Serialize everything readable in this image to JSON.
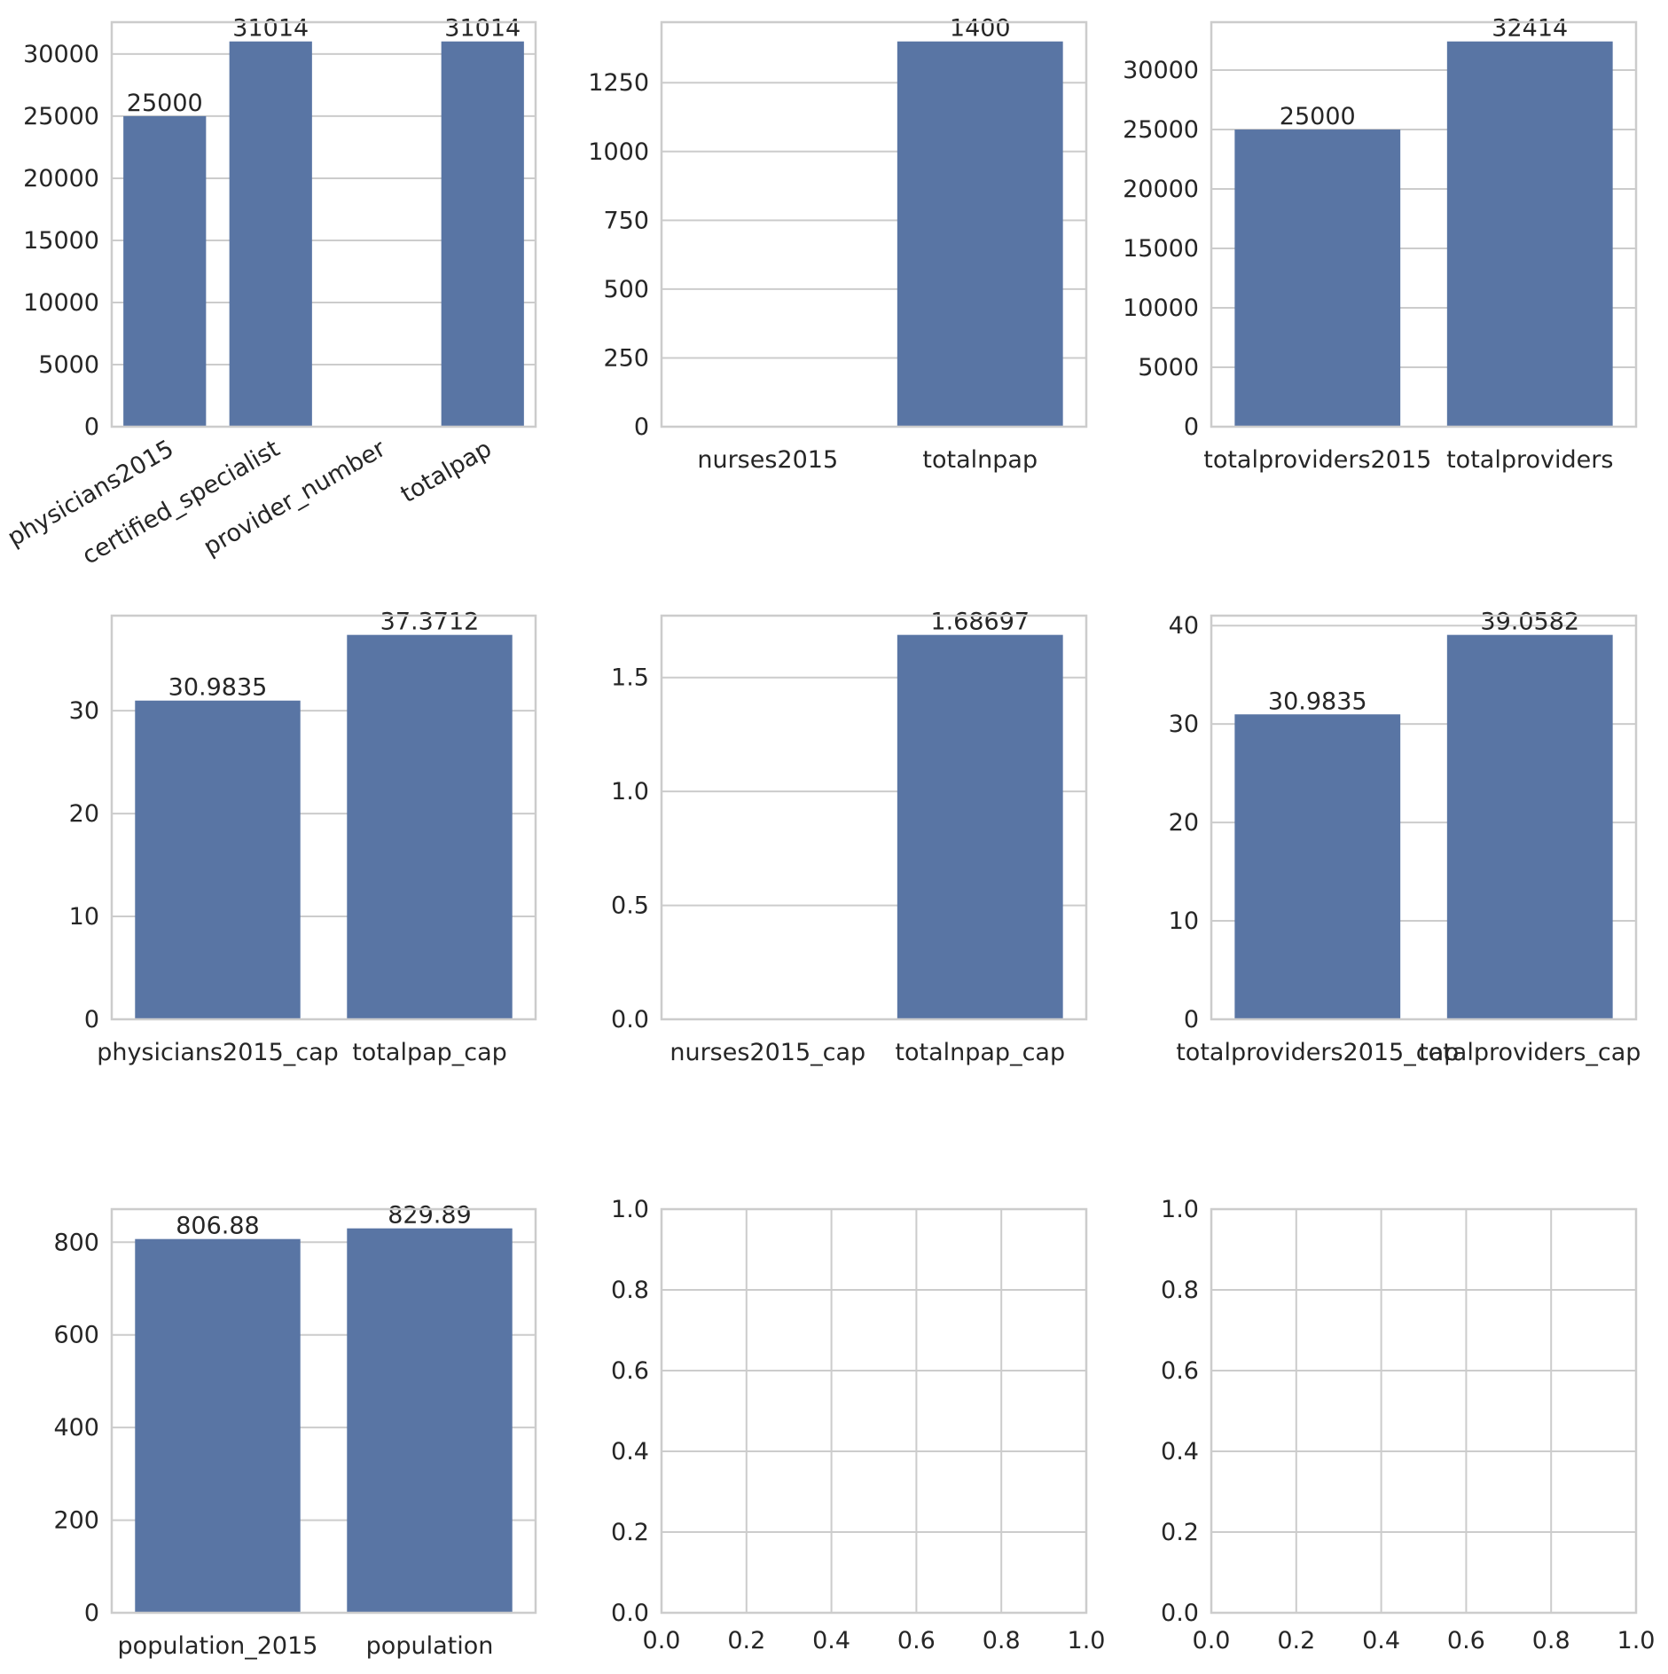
{
  "colors": {
    "bar": "#5975a4",
    "grid": "#cccccc",
    "spine": "#cccccc",
    "text": "#262626",
    "background": "#ffffff"
  },
  "chart_data": [
    {
      "type": "bar",
      "categories": [
        "physicians2015",
        "certified_specialist",
        "provider_number",
        "totalpap"
      ],
      "values": [
        25000,
        31014,
        null,
        31014
      ],
      "data_labels": [
        "25000",
        "31014",
        "",
        "31014"
      ],
      "ylim": [
        0,
        32565
      ],
      "yticks": [
        0,
        5000,
        10000,
        15000,
        20000,
        25000,
        30000
      ],
      "xtick_rotation": -30,
      "grid": "y"
    },
    {
      "type": "bar",
      "categories": [
        "nurses2015",
        "totalnpap"
      ],
      "values": [
        null,
        1400
      ],
      "data_labels": [
        "",
        "1400"
      ],
      "ylim": [
        0,
        1470
      ],
      "yticks": [
        0,
        250,
        500,
        750,
        1000,
        1250
      ],
      "grid": "y"
    },
    {
      "type": "bar",
      "categories": [
        "totalproviders2015",
        "totalproviders"
      ],
      "values": [
        25000,
        32414
      ],
      "data_labels": [
        "25000",
        "32414"
      ],
      "ylim": [
        0,
        34035
      ],
      "yticks": [
        0,
        5000,
        10000,
        15000,
        20000,
        25000,
        30000
      ],
      "grid": "y"
    },
    {
      "type": "bar",
      "categories": [
        "physicians2015_cap",
        "totalpap_cap"
      ],
      "values": [
        30.9835,
        37.3712
      ],
      "data_labels": [
        "30.9835",
        "37.3712"
      ],
      "ylim": [
        0,
        39.24
      ],
      "yticks": [
        0,
        10,
        20,
        30
      ],
      "grid": "y"
    },
    {
      "type": "bar",
      "categories": [
        "nurses2015_cap",
        "totalnpap_cap"
      ],
      "values": [
        null,
        1.68697
      ],
      "data_labels": [
        "",
        "1.68697"
      ],
      "ylim": [
        0,
        1.7713
      ],
      "yticks": [
        0.0,
        0.5,
        1.0,
        1.5
      ],
      "tick_decimals": 1,
      "grid": "y"
    },
    {
      "type": "bar",
      "categories": [
        "totalproviders2015_cap",
        "totalproviders_cap"
      ],
      "values": [
        30.9835,
        39.0582
      ],
      "data_labels": [
        "30.9835",
        "39.0582"
      ],
      "ylim": [
        0,
        41.011
      ],
      "yticks": [
        0,
        10,
        20,
        30,
        40
      ],
      "grid": "y"
    },
    {
      "type": "bar",
      "categories": [
        "population_2015",
        "population"
      ],
      "values": [
        806.88,
        829.89
      ],
      "data_labels": [
        "806.88",
        "829.89"
      ],
      "ylim": [
        0,
        871.38
      ],
      "yticks": [
        0,
        200,
        400,
        600,
        800
      ],
      "grid": "y"
    },
    {
      "type": "empty",
      "xlim": [
        0,
        1
      ],
      "ylim": [
        0,
        1
      ],
      "xticks": [
        0.0,
        0.2,
        0.4,
        0.6,
        0.8,
        1.0
      ],
      "yticks": [
        0.0,
        0.2,
        0.4,
        0.6,
        0.8,
        1.0
      ],
      "tick_decimals": 1,
      "grid": "both"
    },
    {
      "type": "empty",
      "xlim": [
        0,
        1
      ],
      "ylim": [
        0,
        1
      ],
      "xticks": [
        0.0,
        0.2,
        0.4,
        0.6,
        0.8,
        1.0
      ],
      "yticks": [
        0.0,
        0.2,
        0.4,
        0.6,
        0.8,
        1.0
      ],
      "tick_decimals": 1,
      "grid": "both"
    }
  ]
}
